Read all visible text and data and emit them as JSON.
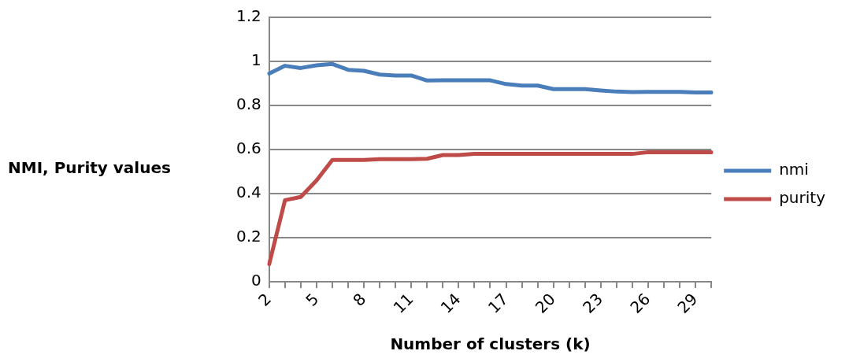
{
  "chart_data": {
    "type": "line",
    "xlabel": "Number of clusters (k)",
    "ylabel": "NMI, Purity values",
    "categories": [
      "2",
      null,
      null,
      "5",
      null,
      null,
      "8",
      null,
      null,
      "11",
      null,
      null,
      "14",
      null,
      null,
      "17",
      null,
      null,
      "20",
      null,
      null,
      "23",
      null,
      null,
      "26",
      null,
      null,
      "29",
      null
    ],
    "series": [
      {
        "name": "nmi",
        "color": "#4a7ebb",
        "values": [
          0.945,
          0.98,
          0.97,
          0.982,
          0.988,
          0.962,
          0.957,
          0.94,
          0.936,
          0.936,
          0.913,
          0.914,
          0.914,
          0.914,
          0.914,
          0.897,
          0.89,
          0.89,
          0.874,
          0.874,
          0.874,
          0.868,
          0.863,
          0.861,
          0.862,
          0.862,
          0.862,
          0.859,
          0.859
        ]
      },
      {
        "name": "purity",
        "color": "#be4b48",
        "values": [
          0.08,
          0.37,
          0.385,
          0.46,
          0.553,
          0.553,
          0.553,
          0.556,
          0.556,
          0.556,
          0.558,
          0.575,
          0.575,
          0.58,
          0.58,
          0.58,
          0.58,
          0.58,
          0.58,
          0.58,
          0.58,
          0.58,
          0.58,
          0.58,
          0.588,
          0.588,
          0.588,
          0.588,
          0.588
        ]
      }
    ],
    "ylim": [
      0,
      1.2
    ],
    "yticks": [
      0,
      0.2,
      0.4,
      0.6,
      0.8,
      1,
      1.2
    ],
    "grid": "y",
    "legend": "right",
    "marker": "none",
    "line_style": "solid"
  }
}
